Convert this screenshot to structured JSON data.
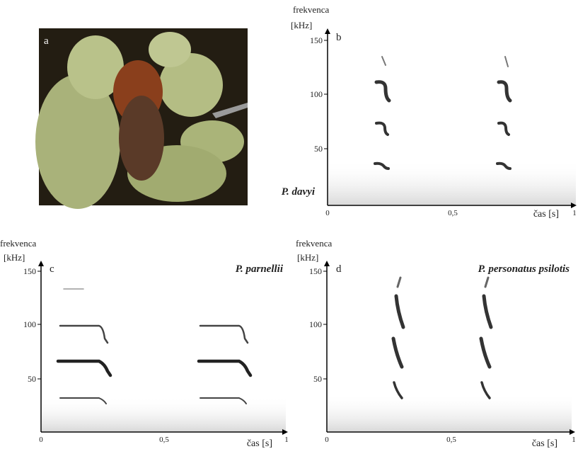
{
  "panel_a": {
    "label": "a"
  },
  "panel_b": {
    "label": "b",
    "species": "P. davyi",
    "y_axis_title": "frekvenca",
    "y_axis_unit": "[kHz]",
    "y_ticks": [
      "150",
      "100",
      "50"
    ],
    "x_ticks": [
      "0",
      "0,5",
      "1"
    ],
    "x_axis_title": "čas [s]"
  },
  "panel_c": {
    "label": "c",
    "species": "P. parnellii",
    "y_axis_title": "frekvenca",
    "y_axis_unit": "[kHz]",
    "y_ticks": [
      "150",
      "100",
      "50"
    ],
    "x_ticks": [
      "0",
      "0,5",
      "1"
    ],
    "x_axis_title": "čas [s]"
  },
  "panel_d": {
    "label": "d",
    "species": "P. personatus psilotis",
    "y_axis_title": "frekvenca",
    "y_axis_unit": "[kHz]",
    "y_ticks": [
      "150",
      "100",
      "50"
    ],
    "x_ticks": [
      "0",
      "0,5",
      "1"
    ],
    "x_axis_title": "čas [s]"
  }
}
